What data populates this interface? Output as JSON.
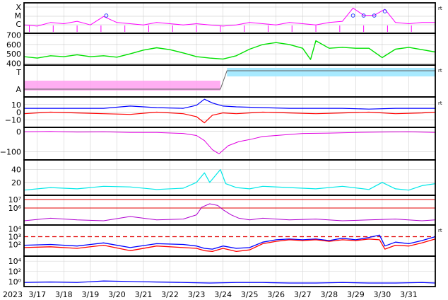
{
  "chart_data": {
    "type": "line",
    "year_label": "2023",
    "x_tick_labels": [
      "3/17",
      "3/18",
      "3/19",
      "3/20",
      "3/21",
      "3/22",
      "3/23",
      "3/24",
      "3/25",
      "3/26",
      "3/27",
      "3/28",
      "3/29",
      "3/30",
      "3/31"
    ],
    "x_range_days": [
      16.5,
      32.0
    ],
    "corner_marker": "rt",
    "colors": {
      "xray": "#ff00ff",
      "solar_wind_speed": "#00e000",
      "polarity_toward": "#9ee8ff",
      "polarity_away": "#ffa0f0",
      "polarity_line": "#606060",
      "bt": "#0000ff",
      "bz": "#ff0000",
      "dst": "#e000e0",
      "kp": "#00e8e8",
      "proton_flux": "#b000d0",
      "electron_flux_a": "#0000ff",
      "electron_flux_b": "#ff0000",
      "threshold": "#e00000",
      "bottom_flux": "#0000ff"
    },
    "panels": [
      {
        "id": "xray-flare-class",
        "tick_labels": [
          "X",
          "M",
          "C"
        ],
        "series": [
          {
            "color_key": "xray",
            "x": [
              16.5,
              17.0,
              17.5,
              18.0,
              18.5,
              19.0,
              19.5,
              20.0,
              20.5,
              21.0,
              21.5,
              22.0,
              22.5,
              23.0,
              23.5,
              24.0,
              24.5,
              25.0,
              25.5,
              26.0,
              26.5,
              27.0,
              27.5,
              28.0,
              28.5,
              28.9,
              29.3,
              29.7,
              30.1,
              30.5,
              31.0,
              31.5,
              32.0
            ],
            "y": [
              0.2,
              0.15,
              0.3,
              0.25,
              0.35,
              0.2,
              0.55,
              0.3,
              0.25,
              0.2,
              0.3,
              0.25,
              0.2,
              0.25,
              0.2,
              0.15,
              0.2,
              0.3,
              0.25,
              0.2,
              0.3,
              0.25,
              0.2,
              0.3,
              0.35,
              0.9,
              0.6,
              0.6,
              0.85,
              0.3,
              0.25,
              0.3,
              0.3
            ]
          }
        ],
        "flare_markers_x": [
          19.6,
          28.9,
          29.3,
          29.7,
          30.1
        ]
      },
      {
        "id": "solar-wind-speed",
        "tick_labels": [
          "700",
          "600",
          "500",
          "400"
        ],
        "y_range": [
          380,
          720
        ],
        "series": [
          {
            "color_key": "solar_wind_speed",
            "x": [
              16.5,
              17.0,
              17.5,
              18.0,
              18.5,
              19.0,
              19.5,
              20.0,
              20.5,
              21.0,
              21.5,
              22.0,
              22.5,
              23.0,
              23.5,
              24.0,
              24.5,
              25.0,
              25.5,
              26.0,
              26.5,
              27.0,
              27.3,
              27.5,
              28.0,
              28.5,
              29.0,
              29.5,
              30.0,
              30.5,
              31.0,
              31.5,
              32.0
            ],
            "y": [
              470,
              455,
              480,
              470,
              490,
              470,
              480,
              465,
              500,
              540,
              565,
              545,
              510,
              470,
              455,
              445,
              480,
              550,
              600,
              620,
              600,
              560,
              440,
              640,
              560,
              570,
              560,
              560,
              460,
              550,
              570,
              545,
              520
            ]
          }
        ]
      },
      {
        "id": "imf-polarity",
        "tick_labels": [
          "T",
          "A"
        ],
        "series": [
          {
            "color_key": "polarity_line",
            "x": [
              16.5,
              23.9,
              24.15,
              32.0
            ],
            "y": [
              0.0,
              0.0,
              1.0,
              1.0
            ]
          }
        ]
      },
      {
        "id": "imf-bt-bz",
        "tick_labels": [
          "10",
          "0",
          "−10"
        ],
        "y_range": [
          -20,
          20
        ],
        "series": [
          {
            "name_key": "bt",
            "color_key": "bt",
            "x": [
              16.5,
              17.5,
              18.5,
              19.5,
              20.5,
              21.5,
              22.5,
              23.0,
              23.3,
              23.6,
              24.0,
              24.5,
              25.5,
              26.5,
              27.5,
              28.5,
              29.5,
              30.5,
              31.5,
              32.0
            ],
            "y": [
              5,
              5,
              5,
              5,
              8,
              6,
              5,
              9,
              17,
              12,
              8,
              7,
              6,
              5,
              5,
              5,
              4,
              5,
              5,
              5
            ]
          },
          {
            "name_key": "bz",
            "color_key": "bz",
            "x": [
              16.5,
              17.5,
              18.5,
              19.5,
              20.5,
              21.5,
              22.5,
              23.0,
              23.3,
              23.6,
              24.0,
              24.5,
              25.5,
              26.5,
              27.5,
              28.5,
              29.5,
              30.5,
              31.5,
              32.0
            ],
            "y": [
              -2,
              0,
              -1,
              -2,
              -3,
              0,
              -2,
              -6,
              -14,
              -4,
              -1,
              -2,
              0,
              -1,
              -2,
              -1,
              0,
              -2,
              -1,
              0
            ]
          }
        ]
      },
      {
        "id": "dst-index",
        "tick_labels": [
          "0",
          "−100"
        ],
        "y_range": [
          -140,
          20
        ],
        "series": [
          {
            "color_key": "dst",
            "x": [
              16.5,
              17.5,
              18.5,
              19.5,
              20.5,
              21.5,
              22.5,
              23.0,
              23.3,
              23.6,
              23.85,
              24.2,
              24.6,
              25.0,
              25.5,
              26.0,
              27.0,
              28.0,
              29.0,
              30.0,
              31.0,
              32.0
            ],
            "y": [
              -2,
              0,
              -3,
              -2,
              -5,
              -5,
              -10,
              -20,
              -45,
              -90,
              -110,
              -70,
              -50,
              -40,
              -25,
              -20,
              -10,
              -8,
              -5,
              -3,
              -2,
              -5
            ]
          }
        ]
      },
      {
        "id": "kp-index",
        "tick_labels": [
          "40",
          "20"
        ],
        "y_range": [
          0,
          55
        ],
        "series": [
          {
            "color_key": "kp",
            "x": [
              16.5,
              17.5,
              18.5,
              19.5,
              20.5,
              21.5,
              22.5,
              23.0,
              23.3,
              23.5,
              23.7,
              23.9,
              24.1,
              24.5,
              25.0,
              25.5,
              26.5,
              27.5,
              28.5,
              29.5,
              30.0,
              30.5,
              31.0,
              31.5,
              32.0
            ],
            "y": [
              8,
              12,
              10,
              14,
              13,
              9,
              11,
              20,
              35,
              20,
              30,
              40,
              18,
              12,
              10,
              14,
              12,
              10,
              14,
              9,
              20,
              10,
              8,
              15,
              18
            ]
          }
        ]
      },
      {
        "id": "proton-flux",
        "tick_labels": [
          "10⁷",
          "10⁶"
        ],
        "y_range_log10": [
          4.0,
          7.5
        ],
        "threshold_log10": [
          7.0,
          6.0
        ],
        "series": [
          {
            "color_key": "proton_flux",
            "x": [
              16.5,
              17.5,
              18.5,
              19.5,
              20.5,
              21.5,
              22.5,
              23.0,
              23.2,
              23.5,
              23.8,
              24.0,
              24.3,
              24.6,
              25.0,
              25.5,
              26.5,
              27.5,
              28.5,
              29.5,
              30.5,
              31.5,
              32.0
            ],
            "y": [
              4.5,
              4.8,
              4.6,
              4.5,
              5.0,
              4.6,
              4.7,
              5.2,
              6.1,
              6.5,
              6.3,
              5.8,
              5.2,
              4.8,
              4.6,
              4.8,
              4.6,
              4.7,
              4.5,
              4.6,
              4.7,
              4.5,
              4.6
            ]
          }
        ]
      },
      {
        "id": "electron-flux",
        "tick_labels": [
          "10⁴",
          "10³",
          "10²"
        ],
        "y_range_log10": [
          0.5,
          4.5
        ],
        "threshold_log10": 3.0,
        "series": [
          {
            "color_key": "electron_flux_a",
            "x": [
              16.5,
              17.5,
              18.5,
              19.5,
              20.5,
              21.5,
              22.5,
              23.0,
              23.3,
              23.6,
              24.0,
              24.5,
              25.0,
              25.5,
              26.0,
              26.5,
              27.0,
              27.5,
              28.0,
              28.5,
              29.0,
              29.5,
              29.9,
              30.1,
              30.5,
              31.0,
              31.5,
              32.0
            ],
            "y": [
              1.9,
              2.0,
              1.8,
              2.2,
              1.6,
              2.1,
              2.0,
              1.8,
              1.5,
              1.4,
              1.8,
              1.5,
              1.6,
              2.3,
              2.6,
              2.7,
              2.6,
              2.7,
              2.5,
              2.8,
              2.6,
              2.9,
              3.2,
              1.8,
              2.3,
              2.1,
              2.5,
              3.0
            ]
          },
          {
            "color_key": "electron_flux_b",
            "x": [
              16.5,
              17.5,
              18.5,
              19.5,
              20.5,
              21.5,
              22.5,
              23.0,
              23.3,
              23.6,
              24.0,
              24.5,
              25.0,
              25.5,
              26.0,
              26.5,
              27.0,
              27.5,
              28.0,
              28.5,
              29.0,
              29.5,
              29.9,
              30.1,
              30.5,
              31.0,
              31.5,
              32.0
            ],
            "y": [
              1.6,
              1.7,
              1.5,
              1.9,
              1.2,
              1.8,
              1.6,
              1.5,
              1.2,
              1.1,
              1.5,
              1.1,
              1.3,
              2.1,
              2.4,
              2.6,
              2.5,
              2.6,
              2.4,
              2.6,
              2.5,
              2.7,
              2.6,
              1.4,
              1.9,
              1.8,
              2.2,
              2.7
            ]
          }
        ]
      },
      {
        "id": "particle-flux-lower",
        "tick_labels": [
          "10⁴",
          "10²",
          "10⁰"
        ],
        "y_range_log10": [
          -1.0,
          5.0
        ],
        "series": [
          {
            "color_key": "bottom_flux",
            "x": [
              16.5,
              17.5,
              18.5,
              19.5,
              20.5,
              21.5,
              22.5,
              23.5,
              24.5,
              25.5,
              26.5,
              27.5,
              28.5,
              29.5,
              30.5,
              31.5,
              32.0
            ],
            "y": [
              -0.2,
              -0.1,
              -0.2,
              0.1,
              0.0,
              -0.1,
              -0.2,
              -0.3,
              -0.2,
              -0.2,
              -0.3,
              -0.3,
              -0.2,
              -0.3,
              -0.3,
              -0.2,
              -0.3
            ]
          }
        ]
      }
    ]
  }
}
